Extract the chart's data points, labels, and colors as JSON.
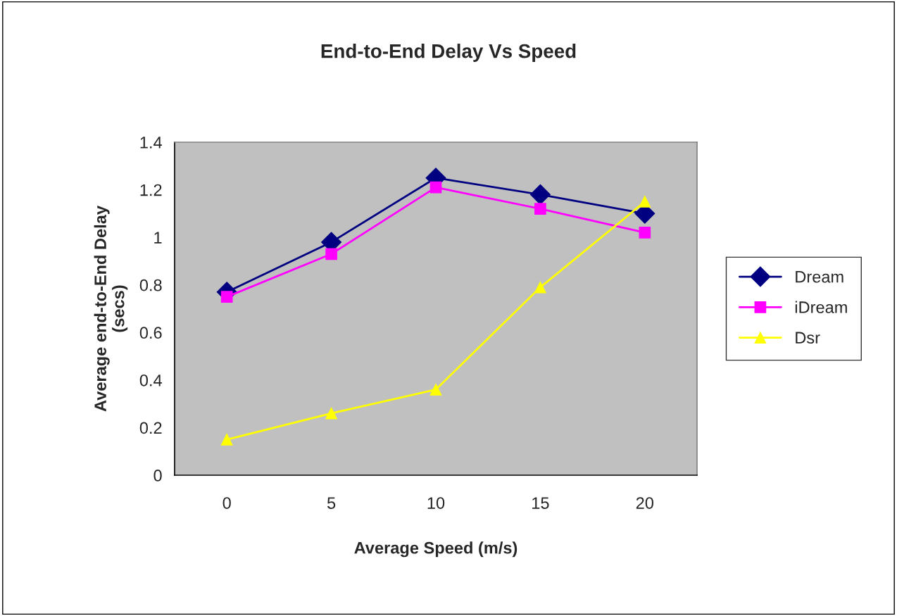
{
  "chart_data": {
    "type": "line",
    "title": "End-to-End Delay Vs Speed",
    "xlabel": "Average Speed (m/s)",
    "ylabel": "Average end-to-End Delay\n(secs)",
    "categories": [
      "0",
      "5",
      "10",
      "15",
      "20"
    ],
    "series": [
      {
        "name": "Dream",
        "color": "#000080",
        "marker": "diamond",
        "values": [
          0.77,
          0.98,
          1.25,
          1.18,
          1.1
        ]
      },
      {
        "name": "iDream",
        "color": "#ff00ff",
        "marker": "square",
        "values": [
          0.75,
          0.93,
          1.21,
          1.12,
          1.02
        ]
      },
      {
        "name": "Dsr",
        "color": "#ffff00",
        "marker": "triangle",
        "values": [
          0.15,
          0.26,
          0.36,
          0.79,
          1.15
        ]
      }
    ],
    "ylim": [
      0,
      1.4
    ],
    "yticks": [
      0,
      0.2,
      0.4,
      0.6,
      0.8,
      1,
      1.2,
      1.4
    ],
    "grid": false,
    "legend": "right",
    "line_style": "solid"
  }
}
